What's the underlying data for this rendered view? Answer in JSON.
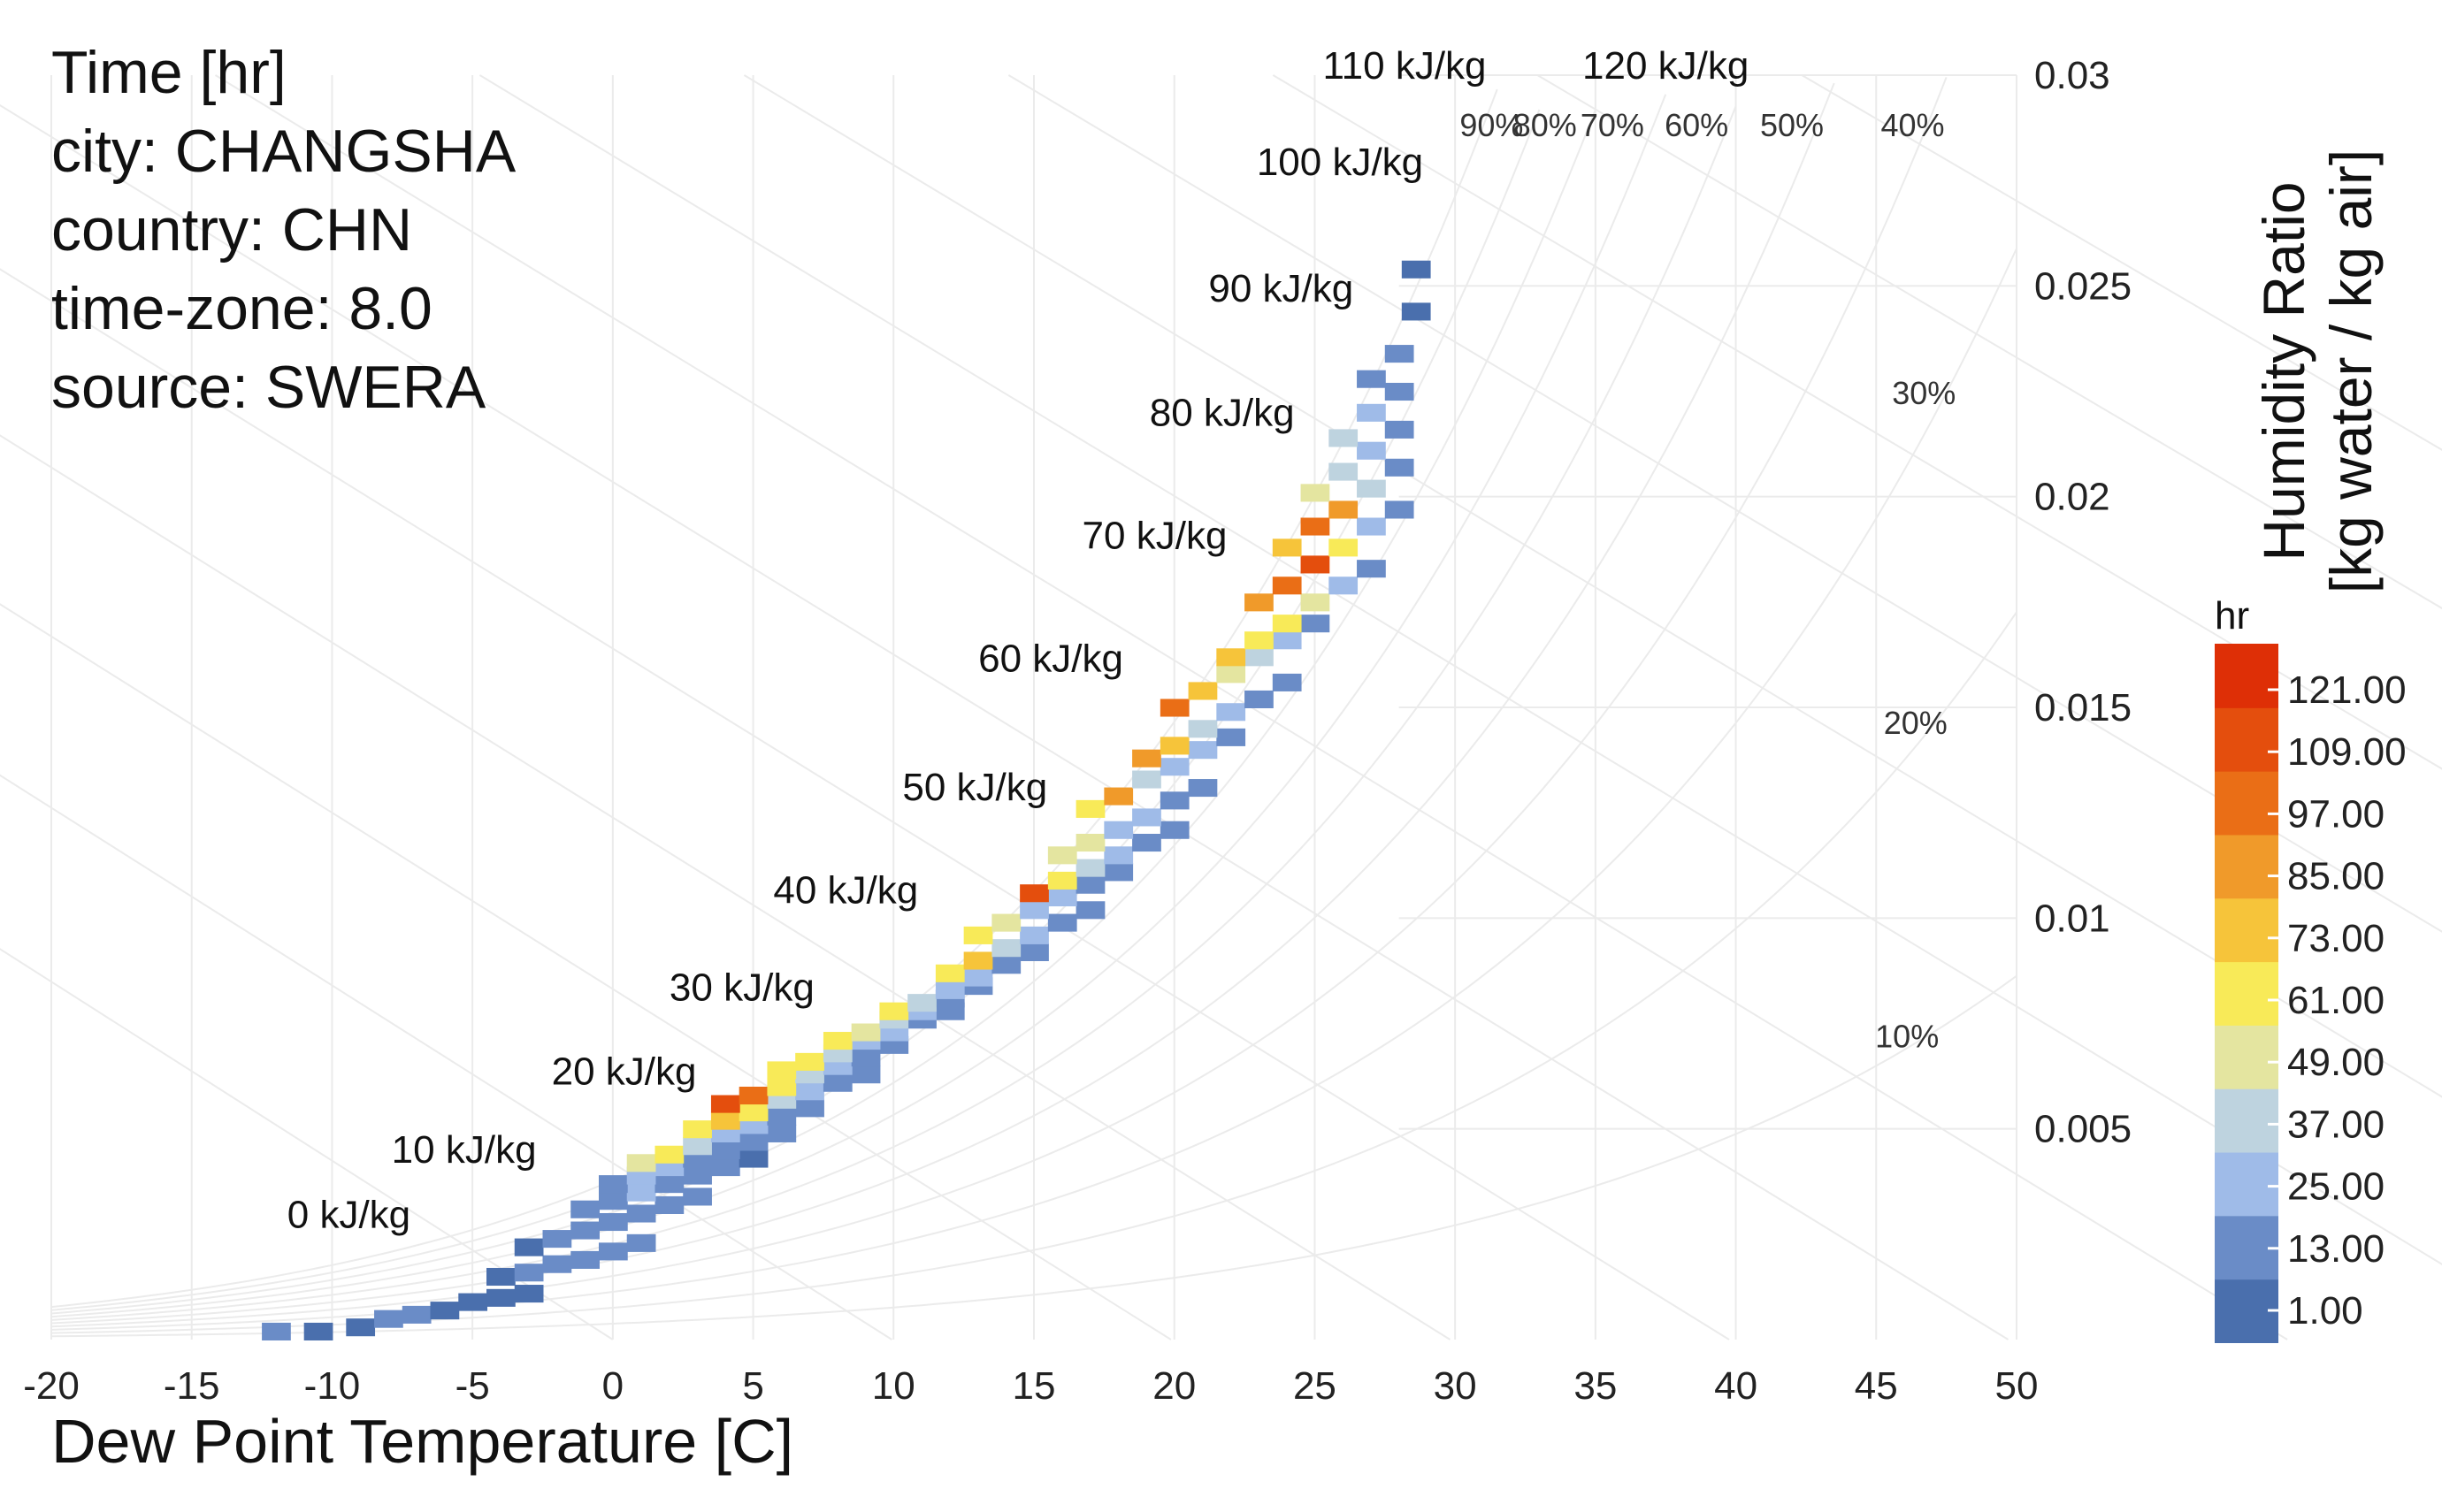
{
  "info": {
    "title": "Time [hr]",
    "city": "city: CHANGSHA",
    "country": "country: CHN",
    "timezone": "time-zone: 8.0",
    "source": "source: SWERA"
  },
  "colors": {
    "background": "#ffffff",
    "grid": "#ebebeb",
    "palette": [
      "#4a6fad",
      "#6a8cc7",
      "#9fbbe8",
      "#bed3df",
      "#e4e5a0",
      "#f8ea58",
      "#f6c43a",
      "#f09a2a",
      "#ea6e16",
      "#e44e0d",
      "#de2f06"
    ]
  },
  "chart_data": {
    "type": "heatmap",
    "title": "Time [hr]",
    "xlabel": "Dew Point Temperature [C]",
    "ylabel": "Humidity Ratio",
    "ylabel2": "[kg water / kg air]",
    "xlim": [
      -20,
      50
    ],
    "ylim": [
      0,
      0.03
    ],
    "x_ticks": [
      "-20",
      "-15",
      "-10",
      "-5",
      "0",
      "5",
      "10",
      "15",
      "20",
      "25",
      "30",
      "35",
      "40",
      "45",
      "50"
    ],
    "y_ticks": [
      {
        "value": 0.005,
        "label": "0.005"
      },
      {
        "value": 0.01,
        "label": "0.01"
      },
      {
        "value": 0.015,
        "label": "0.015"
      },
      {
        "value": 0.02,
        "label": "0.02"
      },
      {
        "value": 0.025,
        "label": "0.025"
      },
      {
        "value": 0.03,
        "label": "0.03"
      }
    ],
    "enthalpy_labels": [
      {
        "label": "0 kJ/kg",
        "x": -9.4,
        "w": 0.00265
      },
      {
        "label": "10 kJ/kg",
        "x": -5.3,
        "w": 0.0042
      },
      {
        "label": "20 kJ/kg",
        "x": 0.4,
        "w": 0.00605
      },
      {
        "label": "30 kJ/kg",
        "x": 4.6,
        "w": 0.00805
      },
      {
        "label": "40 kJ/kg",
        "x": 8.3,
        "w": 0.01035
      },
      {
        "label": "50 kJ/kg",
        "x": 12.9,
        "w": 0.0128
      },
      {
        "label": "60 kJ/kg",
        "x": 15.6,
        "w": 0.01585
      },
      {
        "label": "70 kJ/kg",
        "x": 19.3,
        "w": 0.01877
      },
      {
        "label": "80 kJ/kg",
        "x": 21.7,
        "w": 0.02168
      },
      {
        "label": "90 kJ/kg",
        "x": 23.8,
        "w": 0.02463
      },
      {
        "label": "100 kJ/kg",
        "x": 25.9,
        "w": 0.02763
      },
      {
        "label": "110 kJ/kg",
        "x": 28.2,
        "w": 0.02992
      },
      {
        "label": "120 kJ/kg",
        "x": 37.5,
        "w": 0.02992
      }
    ],
    "rh_labels": [
      {
        "label": "90%",
        "x": 31.3,
        "w": 0.02855
      },
      {
        "label": "80%",
        "x": 33.2,
        "w": 0.02855
      },
      {
        "label": "70%",
        "x": 35.6,
        "w": 0.02855
      },
      {
        "label": "60%",
        "x": 38.6,
        "w": 0.02855
      },
      {
        "label": "50%",
        "x": 42.0,
        "w": 0.02855
      },
      {
        "label": "40%",
        "x": 46.3,
        "w": 0.02855
      },
      {
        "label": "30%",
        "x": 46.7,
        "w": 0.0222
      },
      {
        "label": "20%",
        "x": 46.4,
        "w": 0.01437
      },
      {
        "label": "10%",
        "x": 46.1,
        "w": 0.00693
      }
    ],
    "legend": {
      "title": "hr",
      "labels": [
        "121.00",
        "109.00",
        "97.00",
        "85.00",
        "73.00",
        "61.00",
        "49.00",
        "37.00",
        "25.00",
        "13.00",
        "1.00"
      ]
    },
    "data_range": [
      1,
      127
    ],
    "cells": [
      [
        -12,
        0.0002,
        13
      ],
      [
        -10.5,
        0.0002,
        5
      ],
      [
        -9,
        0.0003,
        3
      ],
      [
        -8,
        0.0005,
        8
      ],
      [
        -7,
        0.0006,
        10
      ],
      [
        -6,
        0.0007,
        5
      ],
      [
        -5,
        0.0009,
        7
      ],
      [
        -4,
        0.001,
        4
      ],
      [
        -3,
        0.0011,
        4
      ],
      [
        -4,
        0.0015,
        6
      ],
      [
        -3,
        0.0016,
        10
      ],
      [
        -2,
        0.0018,
        12
      ],
      [
        -1,
        0.0019,
        8
      ],
      [
        0,
        0.0021,
        10
      ],
      [
        1,
        0.0023,
        9
      ],
      [
        -3,
        0.0022,
        6
      ],
      [
        -2,
        0.0024,
        11
      ],
      [
        -1,
        0.0026,
        15
      ],
      [
        0,
        0.0028,
        12
      ],
      [
        1,
        0.003,
        14
      ],
      [
        2,
        0.0032,
        10
      ],
      [
        3,
        0.0034,
        8
      ],
      [
        -1,
        0.0031,
        9
      ],
      [
        0,
        0.0033,
        18
      ],
      [
        1,
        0.0035,
        20
      ],
      [
        2,
        0.0037,
        16
      ],
      [
        3,
        0.0039,
        12
      ],
      [
        4,
        0.0041,
        10
      ],
      [
        5,
        0.0043,
        7
      ],
      [
        0,
        0.0037,
        13
      ],
      [
        1,
        0.0039,
        28
      ],
      [
        2,
        0.0041,
        22
      ],
      [
        3,
        0.0043,
        18
      ],
      [
        4,
        0.0045,
        14
      ],
      [
        5,
        0.0047,
        10
      ],
      [
        6,
        0.0049,
        8
      ],
      [
        1,
        0.0042,
        55
      ],
      [
        2,
        0.0044,
        62
      ],
      [
        3,
        0.0046,
        40
      ],
      [
        4,
        0.0049,
        30
      ],
      [
        5,
        0.0051,
        20
      ],
      [
        6,
        0.0053,
        14
      ],
      [
        7,
        0.0055,
        10
      ],
      [
        3,
        0.005,
        62
      ],
      [
        4,
        0.0052,
        75
      ],
      [
        5,
        0.0054,
        68
      ],
      [
        6,
        0.0057,
        35
      ],
      [
        7,
        0.0059,
        22
      ],
      [
        8,
        0.0061,
        14
      ],
      [
        9,
        0.0063,
        10
      ],
      [
        4,
        0.0056,
        120
      ],
      [
        5,
        0.0058,
        103
      ],
      [
        6,
        0.006,
        70
      ],
      [
        7,
        0.0063,
        40
      ],
      [
        8,
        0.0065,
        25
      ],
      [
        9,
        0.0067,
        15
      ],
      [
        10,
        0.007,
        10
      ],
      [
        6,
        0.0064,
        58
      ],
      [
        7,
        0.0066,
        62
      ],
      [
        8,
        0.0068,
        45
      ],
      [
        9,
        0.0071,
        30
      ],
      [
        10,
        0.0073,
        20
      ],
      [
        11,
        0.0076,
        14
      ],
      [
        12,
        0.0078,
        8
      ],
      [
        8,
        0.0071,
        66
      ],
      [
        9,
        0.0073,
        50
      ],
      [
        10,
        0.0076,
        35
      ],
      [
        11,
        0.0078,
        25
      ],
      [
        12,
        0.0081,
        16
      ],
      [
        13,
        0.0084,
        10
      ],
      [
        10,
        0.0078,
        70
      ],
      [
        11,
        0.008,
        45
      ],
      [
        12,
        0.0083,
        30
      ],
      [
        13,
        0.0086,
        22
      ],
      [
        14,
        0.0089,
        14
      ],
      [
        15,
        0.0092,
        9
      ],
      [
        12,
        0.0087,
        60
      ],
      [
        13,
        0.009,
        78
      ],
      [
        14,
        0.0093,
        38
      ],
      [
        15,
        0.0096,
        24
      ],
      [
        16,
        0.0099,
        15
      ],
      [
        17,
        0.0102,
        10
      ],
      [
        13,
        0.0096,
        64
      ],
      [
        14,
        0.0099,
        55
      ],
      [
        15,
        0.0102,
        32
      ],
      [
        16,
        0.0105,
        22
      ],
      [
        17,
        0.0108,
        14
      ],
      [
        18,
        0.0111,
        10
      ],
      [
        15,
        0.0106,
        110
      ],
      [
        16,
        0.0109,
        60
      ],
      [
        17,
        0.0112,
        38
      ],
      [
        18,
        0.0115,
        22
      ],
      [
        19,
        0.0118,
        15
      ],
      [
        20,
        0.0121,
        10
      ],
      [
        16,
        0.0115,
        55
      ],
      [
        17,
        0.0118,
        50
      ],
      [
        18,
        0.0121,
        28
      ],
      [
        19,
        0.0124,
        20
      ],
      [
        20,
        0.0128,
        14
      ],
      [
        21,
        0.0131,
        10
      ],
      [
        17,
        0.0126,
        70
      ],
      [
        18,
        0.0129,
        85
      ],
      [
        19,
        0.0133,
        45
      ],
      [
        20,
        0.0136,
        30
      ],
      [
        21,
        0.014,
        22
      ],
      [
        22,
        0.0143,
        12
      ],
      [
        19,
        0.0138,
        90
      ],
      [
        20,
        0.0141,
        72
      ],
      [
        21,
        0.0145,
        40
      ],
      [
        22,
        0.0149,
        28
      ],
      [
        23,
        0.0152,
        18
      ],
      [
        24,
        0.0156,
        12
      ],
      [
        20,
        0.015,
        108
      ],
      [
        21,
        0.0154,
        78
      ],
      [
        22,
        0.0158,
        50
      ],
      [
        23,
        0.0162,
        35
      ],
      [
        24,
        0.0166,
        24
      ],
      [
        25,
        0.017,
        14
      ],
      [
        22,
        0.0162,
        72
      ],
      [
        23,
        0.0166,
        68
      ],
      [
        24,
        0.017,
        58
      ],
      [
        25,
        0.0175,
        50
      ],
      [
        26,
        0.0179,
        26
      ],
      [
        27,
        0.0183,
        14
      ],
      [
        23,
        0.0175,
        88
      ],
      [
        24,
        0.0179,
        102
      ],
      [
        25,
        0.0184,
        118
      ],
      [
        26,
        0.0188,
        70
      ],
      [
        27,
        0.0193,
        20
      ],
      [
        28,
        0.0197,
        12
      ],
      [
        24,
        0.0188,
        76
      ],
      [
        25,
        0.0193,
        108
      ],
      [
        26,
        0.0197,
        95
      ],
      [
        27,
        0.0202,
        42
      ],
      [
        28,
        0.0207,
        18
      ],
      [
        25,
        0.0201,
        48
      ],
      [
        26,
        0.0206,
        40
      ],
      [
        27,
        0.0211,
        30
      ],
      [
        28,
        0.0216,
        14
      ],
      [
        26,
        0.0214,
        36
      ],
      [
        27,
        0.022,
        22
      ],
      [
        28,
        0.0225,
        13
      ],
      [
        27,
        0.0228,
        12
      ],
      [
        28,
        0.0234,
        8
      ],
      [
        28.6,
        0.0244,
        6
      ],
      [
        28.6,
        0.0254,
        5
      ]
    ]
  }
}
